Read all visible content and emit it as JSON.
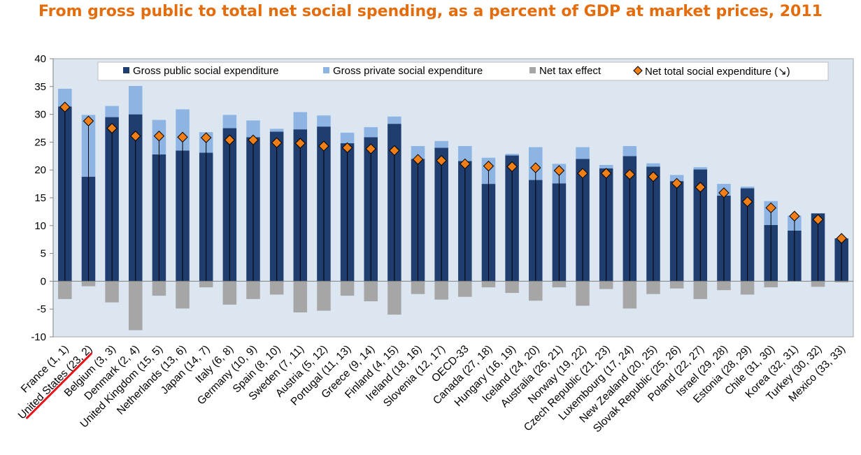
{
  "title": "From gross public to total net social spending, as a percent of GDP at market prices, 2011",
  "colors": {
    "title": "#e46c0a",
    "public": "#1f3d6e",
    "private": "#8db4e2",
    "tax": "#a6a6a6",
    "marker": "#f07f17",
    "plot_bg": "#dce6f1",
    "highlight": "#e3131b"
  },
  "legend": {
    "public": "Gross public social expenditure",
    "private": "Gross private social expenditure",
    "tax": "Net tax effect",
    "net": "Net total social expenditure (↘)"
  },
  "chart_data": {
    "type": "bar",
    "title": "From gross public to total net social spending, as a percent of GDP at market prices, 2011",
    "ylim": [
      -10,
      40
    ],
    "yticks": [
      "40",
      "35",
      "30",
      "25",
      "20",
      "15",
      "10",
      "5",
      "0",
      "-5",
      "-10"
    ],
    "legend_position": "top",
    "grid": false,
    "categories": [
      "France (1, 1)",
      "United States (23, 2)",
      "Belgium (3, 3)",
      "Denmark (2, 4)",
      "United Kingdom (15, 5)",
      "Netherlands (13, 6)",
      "Japan (14, 7)",
      "Italy (6, 8)",
      "Germany (10, 9)",
      "Spain (8, 10)",
      "Sweden (7, 11)",
      "Austria (5, 12)",
      "Portugal (11, 13)",
      "Greece (9, 14)",
      "Finland (4, 15)",
      "Ireland (18, 16)",
      "Slovenia (12, 17)",
      "OECD-33",
      "Canada (27, 18)",
      "Hungary (16, 19)",
      "Iceland (24, 20)",
      "Australia (26, 21)",
      "Norway (19, 22)",
      "Czech Republic (21, 23)",
      "Luxembourg (17, 24)",
      "New Zealand (20, 25)",
      "Slovak Republic (25, 26)",
      "Poland (22, 27)",
      "Israel (29, 28)",
      "Estonia (28, 29)",
      "Chile (31, 30)",
      "Korea (32, 31)",
      "Turkey (30, 32)",
      "Mexico (33, 33)"
    ],
    "highlighted_category": "United States (23, 2)",
    "series": [
      {
        "name": "Gross public social expenditure",
        "values": [
          31.4,
          18.8,
          29.5,
          30.0,
          22.8,
          23.5,
          23.1,
          27.5,
          25.9,
          26.9,
          27.3,
          27.8,
          24.8,
          25.9,
          28.3,
          22.0,
          24.0,
          21.6,
          17.5,
          22.6,
          18.2,
          17.6,
          22.0,
          20.3,
          22.5,
          20.6,
          18.0,
          20.1,
          15.4,
          16.7,
          10.1,
          9.1,
          12.2,
          7.7
        ]
      },
      {
        "name": "Gross private social expenditure",
        "values": [
          3.2,
          11.1,
          2.0,
          5.1,
          6.2,
          7.4,
          3.7,
          2.4,
          3.0,
          0.5,
          3.1,
          2.0,
          1.9,
          1.8,
          1.3,
          2.3,
          1.2,
          2.7,
          4.7,
          0.3,
          5.9,
          3.5,
          2.1,
          0.6,
          1.8,
          0.6,
          1.1,
          0.4,
          2.1,
          0.3,
          4.3,
          2.7,
          0.0,
          0.0
        ]
      },
      {
        "name": "Net tax effect",
        "values": [
          -3.2,
          -0.9,
          -3.8,
          -8.8,
          -2.6,
          -4.9,
          -1.1,
          -4.2,
          -3.2,
          -2.4,
          -5.6,
          -5.3,
          -2.6,
          -3.6,
          -6.0,
          -2.3,
          -3.3,
          -2.8,
          -1.1,
          -2.1,
          -3.5,
          -1.1,
          -4.4,
          -1.4,
          -4.9,
          -2.3,
          -1.3,
          -3.2,
          -1.6,
          -2.4,
          -1.1,
          0.0,
          -1.0,
          -0.2
        ]
      },
      {
        "name": "Net total social expenditure (↘)",
        "values": [
          31.3,
          28.8,
          27.5,
          26.1,
          26.1,
          25.9,
          25.8,
          25.4,
          25.4,
          24.9,
          24.8,
          24.3,
          24.0,
          23.8,
          23.5,
          21.9,
          21.7,
          21.1,
          20.7,
          20.6,
          20.4,
          19.9,
          19.4,
          19.4,
          19.2,
          18.8,
          17.6,
          16.9,
          15.9,
          14.3,
          13.2,
          11.7,
          11.1,
          7.7
        ]
      }
    ]
  }
}
